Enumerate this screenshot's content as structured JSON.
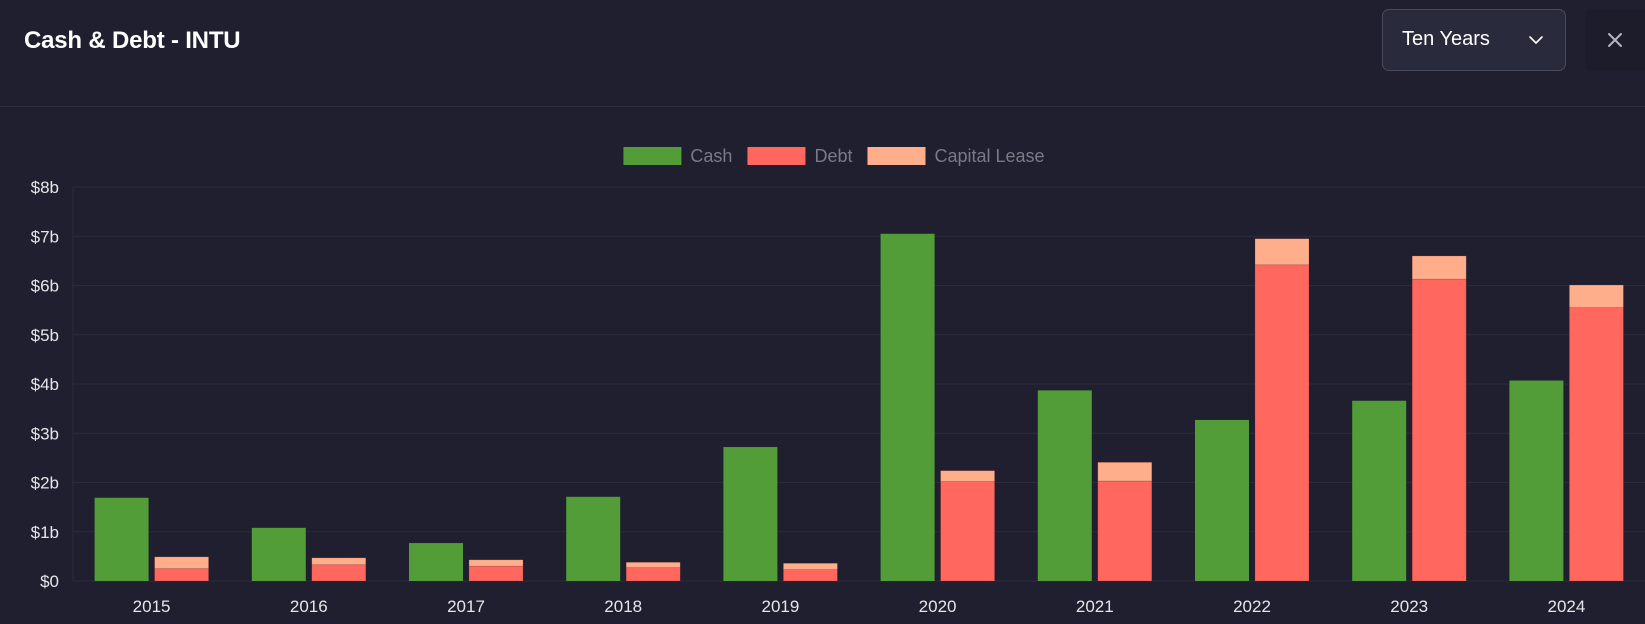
{
  "header": {
    "title": "Cash & Debt - INTU",
    "range_select": {
      "value": "Ten Years",
      "icon": "chevron-down-icon"
    },
    "close_icon": "close-icon"
  },
  "colors": {
    "background": "#1f1f2f",
    "gridline": "#2b2b3b",
    "cash": "#529d38",
    "debt": "#ff675f",
    "capital_lease": "#ffae8c",
    "legend_text": "#7a7a86",
    "axis_text": "#e6e6ea"
  },
  "chart_data": {
    "type": "bar",
    "stacked_groups": [
      [
        "Cash"
      ],
      [
        "Debt",
        "Capital Lease"
      ]
    ],
    "categories": [
      "2015",
      "2016",
      "2017",
      "2018",
      "2019",
      "2020",
      "2021",
      "2022",
      "2023",
      "2024"
    ],
    "series": [
      {
        "name": "Cash",
        "stack": "cash",
        "values": [
          1.69,
          1.08,
          0.77,
          1.71,
          2.72,
          7.05,
          3.87,
          3.27,
          3.66,
          4.07
        ]
      },
      {
        "name": "Debt",
        "stack": "debt",
        "values": [
          0.25,
          0.33,
          0.3,
          0.27,
          0.23,
          2.02,
          2.03,
          6.42,
          6.13,
          5.55
        ]
      },
      {
        "name": "Capital Lease",
        "stack": "debt",
        "values": [
          0.24,
          0.14,
          0.13,
          0.11,
          0.13,
          0.22,
          0.38,
          0.53,
          0.47,
          0.46
        ]
      }
    ],
    "ylim": [
      0,
      8
    ],
    "yticks": [
      {
        "value": 0,
        "label": "$0"
      },
      {
        "value": 1,
        "label": "$1b"
      },
      {
        "value": 2,
        "label": "$2b"
      },
      {
        "value": 3,
        "label": "$3b"
      },
      {
        "value": 4,
        "label": "$4b"
      },
      {
        "value": 5,
        "label": "$5b"
      },
      {
        "value": 6,
        "label": "$6b"
      },
      {
        "value": 7,
        "label": "$7b"
      },
      {
        "value": 8,
        "label": "$8b"
      }
    ],
    "legend_position": "top-center",
    "grid": true
  }
}
